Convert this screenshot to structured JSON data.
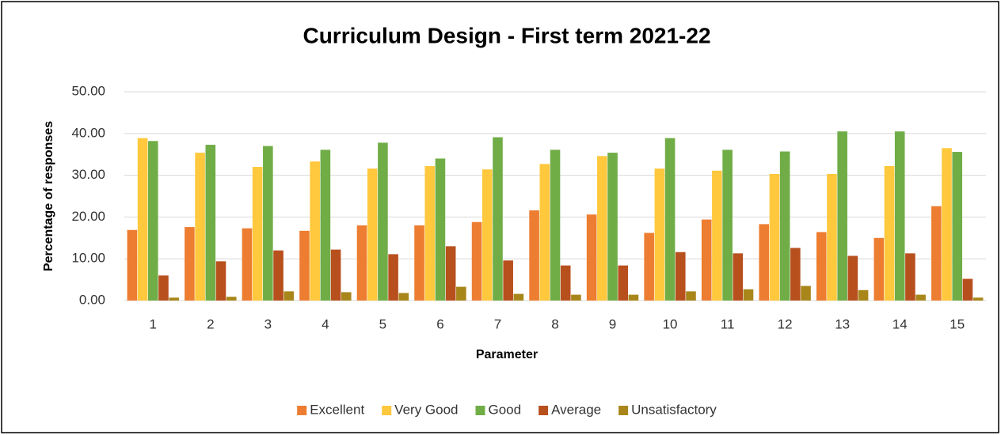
{
  "chart_data": {
    "type": "bar",
    "title": "Curriculum Design - First term 2021-22",
    "x_label": "Parameter",
    "y_label": "Percentage of responses",
    "categories": [
      "1",
      "2",
      "3",
      "4",
      "5",
      "6",
      "7",
      "8",
      "9",
      "10",
      "11",
      "12",
      "13",
      "14",
      "15"
    ],
    "series": [
      {
        "name": "Excellent",
        "color": "#ED7D31",
        "values": [
          16.9,
          17.6,
          17.3,
          16.7,
          18.0,
          18.0,
          18.8,
          21.6,
          20.6,
          16.2,
          19.4,
          18.3,
          16.4,
          15.0,
          22.6
        ]
      },
      {
        "name": "Very Good",
        "color": "#FFC83D",
        "values": [
          38.9,
          35.4,
          32.0,
          33.3,
          31.6,
          32.2,
          31.4,
          32.7,
          34.6,
          31.6,
          31.1,
          30.3,
          30.3,
          32.2,
          36.5
        ]
      },
      {
        "name": "Good",
        "color": "#70AD47",
        "values": [
          38.2,
          37.3,
          37.0,
          36.1,
          37.8,
          34.0,
          39.1,
          36.1,
          35.4,
          38.9,
          36.1,
          35.7,
          40.5,
          40.5,
          35.6
        ]
      },
      {
        "name": "Average",
        "color": "#B8501E",
        "values": [
          6.0,
          9.4,
          12.0,
          12.2,
          11.1,
          13.0,
          9.6,
          8.4,
          8.4,
          11.6,
          11.3,
          12.6,
          10.7,
          11.3,
          5.2
        ]
      },
      {
        "name": "Unsatisfactory",
        "color": "#A8861A",
        "values": [
          0.7,
          0.9,
          2.2,
          2.0,
          1.8,
          3.3,
          1.6,
          1.4,
          1.4,
          2.2,
          2.7,
          3.5,
          2.5,
          1.4,
          0.7
        ]
      }
    ],
    "ylim": [
      0,
      50
    ],
    "yticks": [
      {
        "value": 0,
        "label": "0.00"
      },
      {
        "value": 10,
        "label": "10.00"
      },
      {
        "value": 20,
        "label": "20.00"
      },
      {
        "value": 30,
        "label": "30.00"
      },
      {
        "value": 40,
        "label": "40.00"
      },
      {
        "value": 50,
        "label": "50.00"
      }
    ],
    "grid": true,
    "legend": "bottom"
  }
}
